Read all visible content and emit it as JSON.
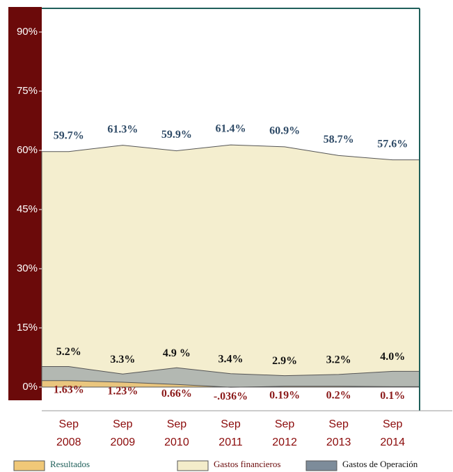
{
  "chart_data": {
    "type": "area",
    "categories": [
      "Sep 2008",
      "Sep 2009",
      "Sep 2010",
      "Sep 2011",
      "Sep 2012",
      "Sep 2013",
      "Sep 2014"
    ],
    "series": [
      {
        "name": "Gastos financieros",
        "color": "#f3ecca",
        "values": [
          59.7,
          61.3,
          59.9,
          61.4,
          60.9,
          58.7,
          57.6
        ],
        "value_labels": [
          "59.7%",
          "61.3%",
          "59.9%",
          "61.4%",
          "60.9%",
          "58.7%",
          "57.6%"
        ]
      },
      {
        "name": "Gastos de Operación",
        "color": "#7d8c9a",
        "values": [
          5.2,
          3.3,
          4.9,
          3.4,
          2.9,
          3.2,
          4.0
        ],
        "value_labels": [
          "5.2%",
          "3.3%",
          "4.9 %",
          "3.4%",
          "2.9%",
          "3.2%",
          "4.0%"
        ]
      },
      {
        "name": "Resultados",
        "color": "#f0c878",
        "values": [
          1.63,
          1.23,
          0.66,
          -0.036,
          0.19,
          0.2,
          0.1
        ],
        "value_labels": [
          "1.63%",
          "1.23%",
          "0.66%",
          "-.036%",
          "0.19%",
          "0.2%",
          "0.1%"
        ]
      }
    ],
    "ylim": [
      -6,
      96
    ],
    "yticks": [
      {
        "value": 0,
        "label": "0%"
      },
      {
        "value": 15,
        "label": "15%"
      },
      {
        "value": 30,
        "label": "30%"
      },
      {
        "value": 45,
        "label": "45%"
      },
      {
        "value": 60,
        "label": "60%"
      },
      {
        "value": 75,
        "label": "75%"
      },
      {
        "value": 90,
        "label": "90%"
      }
    ]
  }
}
